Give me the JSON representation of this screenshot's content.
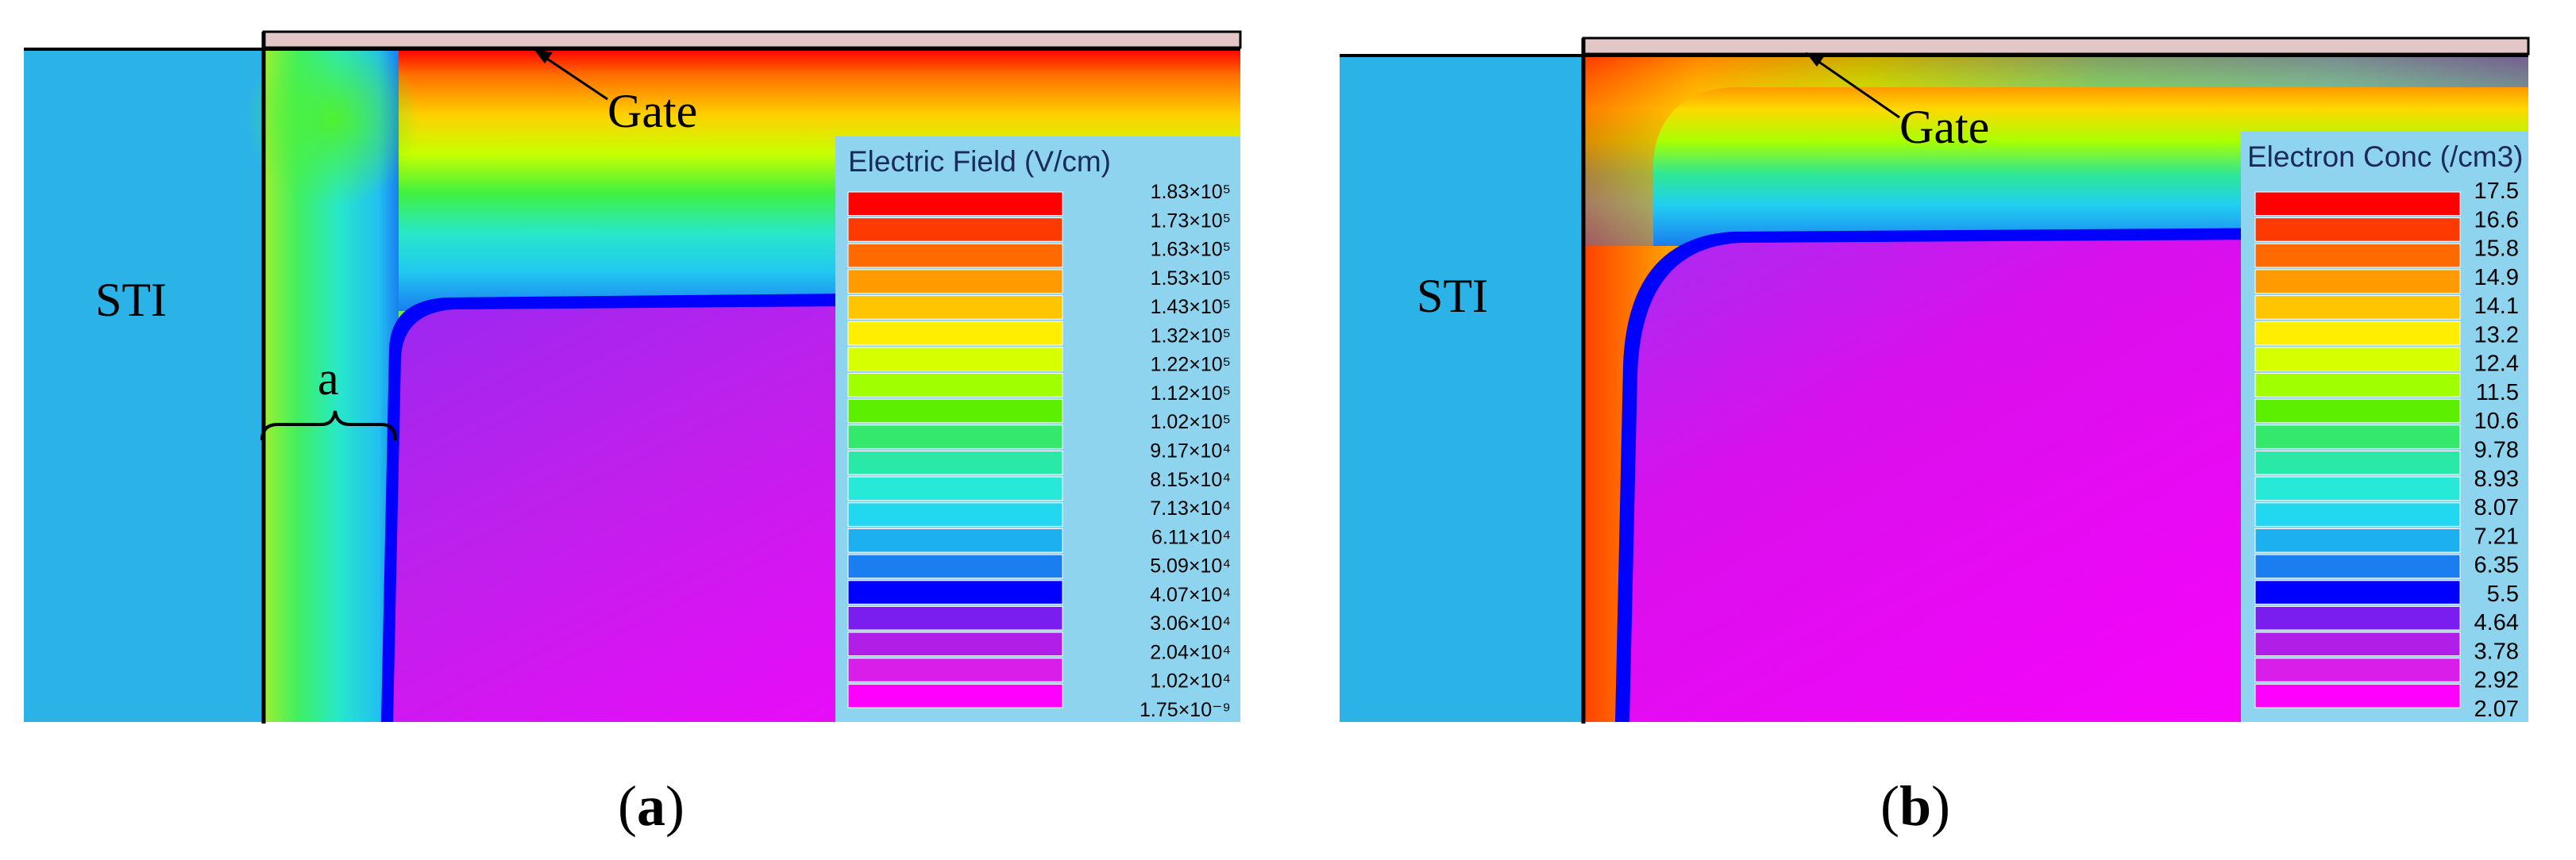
{
  "panels": [
    {
      "id": "a",
      "caption": "a",
      "sti_label": "STI",
      "gate_label": "Gate",
      "dimension_label": "a",
      "legend": {
        "title": "Electric Field (V/cm)",
        "values": [
          "1.83×10⁵",
          "1.73×10⁵",
          "1.63×10⁵",
          "1.53×10⁵",
          "1.43×10⁵",
          "1.32×10⁵",
          "1.22×10⁵",
          "1.12×10⁵",
          "1.02×10⁵",
          "9.17×10⁴",
          "8.15×10⁴",
          "7.13×10⁴",
          "6.11×10⁴",
          "5.09×10⁴",
          "4.07×10⁴",
          "3.06×10⁴",
          "2.04×10⁴",
          "1.02×10⁴",
          "1.75×10⁻⁹"
        ]
      }
    },
    {
      "id": "b",
      "caption": "b",
      "sti_label": "STI",
      "gate_label": "Gate",
      "legend": {
        "title": "Electron Conc (/cm3)",
        "values": [
          "17.5",
          "16.6",
          "15.8",
          "14.9",
          "14.1",
          "13.2",
          "12.4",
          "11.5",
          "10.6",
          "9.78",
          "8.93",
          "8.07",
          "7.21",
          "6.35",
          "5.5",
          "4.64",
          "3.78",
          "2.92",
          "2.07"
        ]
      }
    }
  ],
  "colors": {
    "sti": "#2bb3e8",
    "legend_bg": "#8fd4ee",
    "gate": "#e3c6c6",
    "scale": [
      "#ff0000",
      "#ff3a00",
      "#ff6a00",
      "#ff9a00",
      "#ffc600",
      "#ffee00",
      "#d6ff00",
      "#a0ff00",
      "#5cf000",
      "#33e86a",
      "#2ae8a8",
      "#28e8d8",
      "#22d8f0",
      "#1cb0f0",
      "#1a7ef0",
      "#0000ff",
      "#7a1ef0",
      "#b01ee8",
      "#d81ee8",
      "#ff00ff"
    ]
  }
}
